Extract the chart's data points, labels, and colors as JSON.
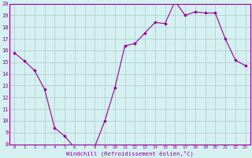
{
  "x": [
    0,
    1,
    2,
    3,
    4,
    5,
    6,
    7,
    8,
    9,
    10,
    11,
    12,
    13,
    14,
    15,
    16,
    17,
    18,
    19,
    20,
    21,
    22,
    23
  ],
  "y": [
    15.8,
    15.1,
    14.3,
    12.7,
    9.4,
    8.7,
    7.7,
    7.7,
    7.8,
    10.0,
    12.8,
    16.4,
    16.6,
    17.5,
    18.4,
    18.3,
    20.2,
    19.0,
    19.3,
    19.2,
    19.2,
    17.0,
    15.2,
    14.7
  ],
  "line_color": "#990099",
  "marker": "D",
  "marker_size": 1.8,
  "bg_color": "#d4f0f0",
  "grid_color": "#b0c8c8",
  "xlabel": "Windchill (Refroidissement éolien,°C)",
  "ylim": [
    8,
    20
  ],
  "xlim": [
    -0.5,
    23.5
  ],
  "yticks": [
    8,
    9,
    10,
    11,
    12,
    13,
    14,
    15,
    16,
    17,
    18,
    19,
    20
  ],
  "xticks": [
    0,
    1,
    2,
    3,
    4,
    5,
    6,
    7,
    8,
    9,
    10,
    11,
    12,
    13,
    14,
    15,
    16,
    17,
    18,
    19,
    20,
    21,
    22,
    23
  ],
  "tick_color": "#990099",
  "label_color": "#990099",
  "spine_color": "#990099"
}
